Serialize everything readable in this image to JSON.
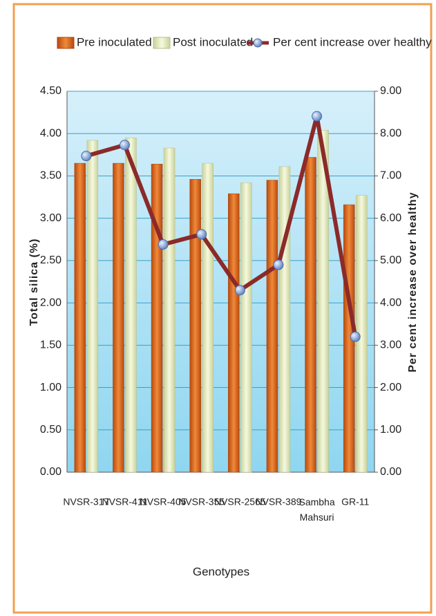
{
  "chart_data": {
    "type": "bar_line",
    "categories": [
      "NVSR-317",
      "NVSR-411",
      "NVSR-405",
      "NVSR-355",
      "NVSR-2565",
      "NVSR-389",
      "Sambha Mahsuri",
      "GR-11"
    ],
    "series": [
      {
        "name": "Pre inoculated",
        "color": "#d9651a",
        "values": [
          3.65,
          3.65,
          3.64,
          3.46,
          3.29,
          3.45,
          3.72,
          3.16
        ]
      },
      {
        "name": "Post inoculated",
        "color": "#e8efc4",
        "values": [
          3.92,
          3.95,
          3.83,
          3.65,
          3.42,
          3.61,
          4.04,
          3.27
        ]
      },
      {
        "name": "Per cent increase over healthy",
        "color": "#8b2a2a",
        "axis": "y2",
        "values": [
          7.47,
          7.73,
          5.38,
          5.62,
          4.3,
          4.9,
          8.41,
          3.2
        ]
      }
    ],
    "ylabel": "Total silica (%)",
    "y2label": "Per cent increase over healthy",
    "xlabel": "Genotypes",
    "ylim": [
      0,
      4.5
    ],
    "yticks": [
      {
        "value": 0,
        "label": "0.00"
      },
      {
        "value": 0.5,
        "label": "0.50"
      },
      {
        "value": 1,
        "label": "1.00"
      },
      {
        "value": 1.5,
        "label": "1.50"
      },
      {
        "value": 2,
        "label": "2.00"
      },
      {
        "value": 2.5,
        "label": "2.50"
      },
      {
        "value": 3,
        "label": "3.00"
      },
      {
        "value": 3.5,
        "label": "3.50"
      },
      {
        "value": 4,
        "label": "4.00"
      },
      {
        "value": 4.5,
        "label": "4.50"
      }
    ],
    "y2lim": [
      0,
      9
    ],
    "y2ticks": [
      {
        "value": 0,
        "label": "0.00"
      },
      {
        "value": 1,
        "label": "1.00"
      },
      {
        "value": 2,
        "label": "2.00"
      },
      {
        "value": 3,
        "label": "3.00"
      },
      {
        "value": 4,
        "label": "4.00"
      },
      {
        "value": 5,
        "label": "5.00"
      },
      {
        "value": 6,
        "label": "6.00"
      },
      {
        "value": 7,
        "label": "7.00"
      },
      {
        "value": 8,
        "label": "8.00"
      },
      {
        "value": 9,
        "label": "9.00"
      }
    ],
    "grid": true,
    "legend": "top"
  }
}
